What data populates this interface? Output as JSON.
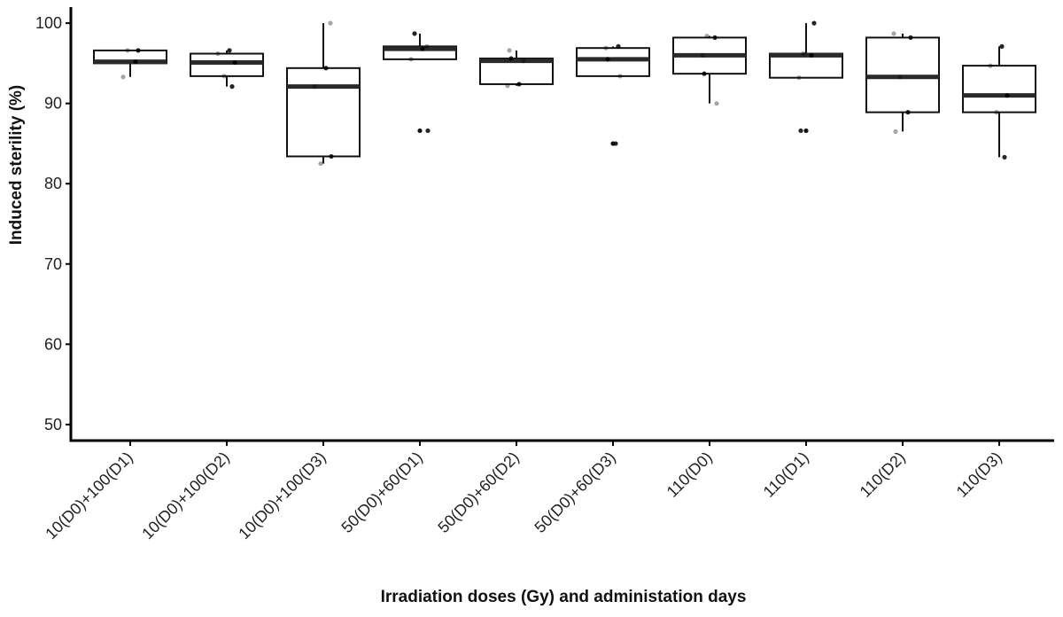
{
  "chart_data": {
    "type": "box",
    "title": "",
    "xlabel": "Irradiation doses (Gy) and administation days",
    "ylabel": "Induced sterility (%)",
    "ylim": [
      48,
      102
    ],
    "yticks": [
      50,
      60,
      70,
      80,
      90,
      100
    ],
    "grid": false,
    "categories": [
      "10(D0)+100(D1)",
      "10(D0)+100(D2)",
      "10(D0)+100(D3)",
      "50(D0)+60(D1)",
      "50(D0)+60(D2)",
      "50(D0)+60(D3)",
      "110(D0)",
      "110(D1)",
      "110(D2)",
      "110(D3)"
    ],
    "boxes": [
      {
        "min": 93.3,
        "q1": 95.0,
        "median": 95.2,
        "q3": 96.6,
        "max": 96.6,
        "outliers": []
      },
      {
        "min": 92.1,
        "q1": 93.4,
        "median": 95.1,
        "q3": 96.2,
        "max": 96.6,
        "outliers": []
      },
      {
        "min": 82.5,
        "q1": 83.4,
        "median": 92.1,
        "q3": 94.4,
        "max": 100.0,
        "outliers": []
      },
      {
        "min": 95.5,
        "q1": 95.5,
        "median": 96.8,
        "q3": 97.1,
        "max": 98.7,
        "outliers": [
          86.6
        ]
      },
      {
        "min": 92.2,
        "q1": 92.4,
        "median": 95.3,
        "q3": 95.6,
        "max": 96.6,
        "outliers": []
      },
      {
        "min": 93.4,
        "q1": 93.4,
        "median": 95.5,
        "q3": 96.9,
        "max": 97.1,
        "outliers": [
          85.0
        ]
      },
      {
        "min": 90.0,
        "q1": 93.7,
        "median": 96.0,
        "q3": 98.2,
        "max": 98.4,
        "outliers": []
      },
      {
        "min": 93.2,
        "q1": 93.2,
        "median": 96.0,
        "q3": 96.2,
        "max": 100.0,
        "outliers": [
          86.6
        ]
      },
      {
        "min": 86.5,
        "q1": 88.9,
        "median": 93.3,
        "q3": 98.2,
        "max": 98.7,
        "outliers": []
      },
      {
        "min": 83.3,
        "q1": 88.9,
        "median": 91.0,
        "q3": 94.7,
        "max": 97.1,
        "outliers": []
      }
    ],
    "points": [
      [
        93.3,
        95.2,
        96.6,
        96.6
      ],
      [
        92.1,
        93.4,
        95.1,
        96.2,
        96.6
      ],
      [
        82.5,
        83.4,
        92.1,
        94.4,
        100.0
      ],
      [
        86.6,
        95.5,
        96.8,
        97.1,
        98.7
      ],
      [
        92.2,
        92.4,
        95.3,
        95.6,
        96.6
      ],
      [
        85.0,
        93.4,
        95.5,
        96.9,
        97.1
      ],
      [
        90.0,
        93.7,
        96.0,
        98.2,
        98.4
      ],
      [
        86.6,
        93.2,
        96.0,
        96.2,
        100.0
      ],
      [
        86.5,
        88.9,
        93.3,
        98.2,
        98.7
      ],
      [
        83.3,
        88.9,
        91.0,
        94.7,
        97.1
      ]
    ]
  }
}
